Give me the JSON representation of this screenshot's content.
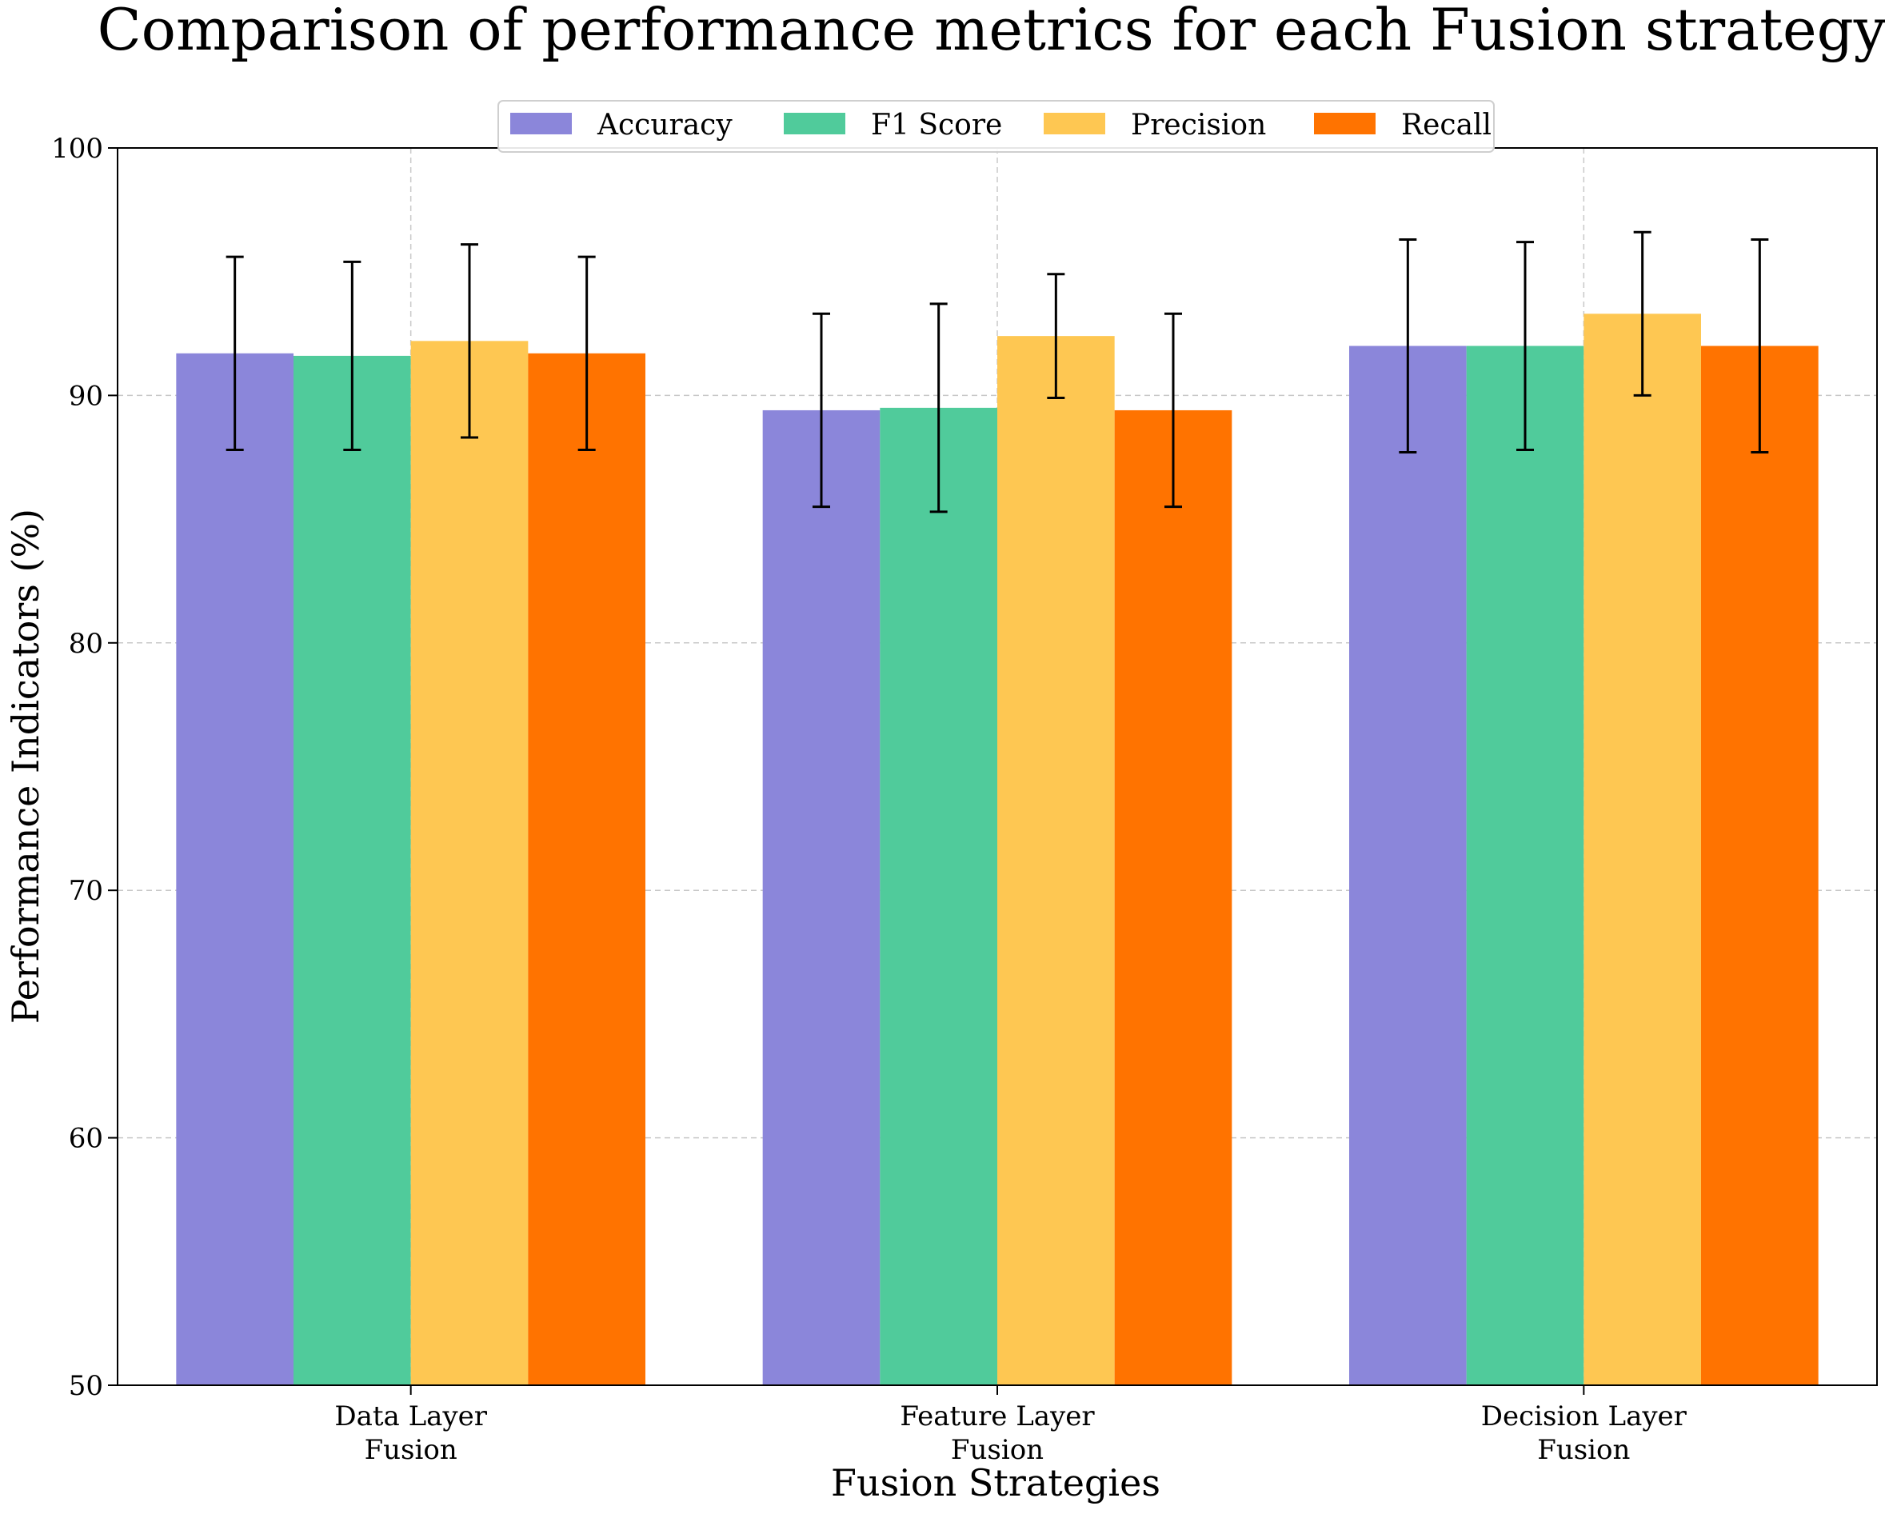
{
  "chart_data": {
    "type": "bar",
    "title": "Comparison of performance metrics for each Fusion strategy",
    "xlabel": "Fusion Strategies",
    "ylabel": "Performance Indicators (%)",
    "ylim": [
      50,
      100
    ],
    "yticks": [
      50,
      60,
      70,
      80,
      90,
      100
    ],
    "grid": true,
    "legend_position": "top-center",
    "categories": [
      [
        "Data Layer",
        "Fusion"
      ],
      [
        "Feature Layer",
        "Fusion"
      ],
      [
        "Decision Layer",
        "Fusion"
      ]
    ],
    "series": [
      {
        "name": "Accuracy",
        "color": "#8b86da",
        "values": [
          91.7,
          89.4,
          92.0
        ],
        "errors": [
          3.9,
          3.9,
          4.3
        ]
      },
      {
        "name": "F1 Score",
        "color": "#50cb9b",
        "values": [
          91.6,
          89.5,
          92.0
        ],
        "errors": [
          3.8,
          4.2,
          4.2
        ]
      },
      {
        "name": "Precision",
        "color": "#fec752",
        "values": [
          92.2,
          92.4,
          93.3
        ],
        "errors": [
          3.9,
          2.5,
          3.3
        ]
      },
      {
        "name": "Recall",
        "color": "#ff7300",
        "values": [
          91.7,
          89.4,
          92.0
        ],
        "errors": [
          3.9,
          3.9,
          4.3
        ]
      }
    ]
  }
}
